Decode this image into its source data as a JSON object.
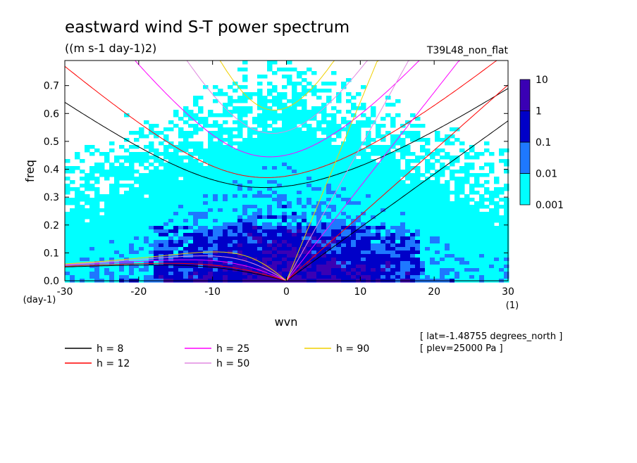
{
  "chart_data": {
    "type": "heatmap",
    "title": "eastward wind S-T power spectrum",
    "subtitle": "((m s-1 day-1)2)",
    "run_label": "T39L48_non_flat",
    "xlabel": "wvn",
    "ylabel": "freq",
    "x_unit": "(1)",
    "y_unit": "(day-1)",
    "xlim": [
      -30,
      30
    ],
    "ylim": [
      0,
      0.79
    ],
    "x_ticks": [
      -30,
      -20,
      -10,
      0,
      10,
      20,
      30
    ],
    "x_tick_labels": [
      "-30",
      "-20",
      "-10",
      "0",
      "10",
      "20",
      "30"
    ],
    "y_ticks": [
      0.0,
      0.1,
      0.2,
      0.3,
      0.4,
      0.5,
      0.6,
      0.7
    ],
    "y_tick_labels": [
      "0.0",
      "0.1",
      "0.2",
      "0.3",
      "0.4",
      "0.5",
      "0.6",
      "0.7"
    ],
    "colorbar": {
      "levels": [
        "0.001",
        "0.01",
        "0.1",
        "1",
        "10"
      ],
      "colors": [
        "#00ffff",
        "#1e78ff",
        "#0000c8",
        "#3a00b4"
      ]
    },
    "dispersion_legend": [
      {
        "label": "h =  8",
        "color": "#000000",
        "h": 8
      },
      {
        "label": "h = 12",
        "color": "#ff0000",
        "h": 12
      },
      {
        "label": "h = 25",
        "color": "#ff00ff",
        "h": 25
      },
      {
        "label": "h = 50",
        "color": "#e08ae0",
        "h": 50
      },
      {
        "label": "h = 90",
        "color": "#f0d000",
        "h": 90
      }
    ],
    "info": [
      "[ lat=-1.48755 degrees_north ]",
      "[ plev=25000 Pa ]"
    ]
  }
}
